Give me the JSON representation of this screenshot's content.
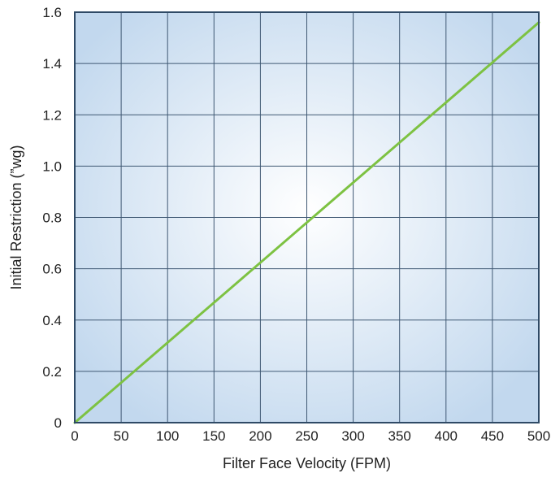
{
  "chart_data": {
    "type": "line",
    "title": "",
    "xlabel": "Filter Face Velocity (FPM)",
    "ylabel": "Initial Restriction  (”wg)",
    "xlim": [
      0,
      500
    ],
    "ylim": [
      0,
      1.6
    ],
    "x_ticks": [
      "0",
      "50",
      "100",
      "150",
      "200",
      "250",
      "300",
      "350",
      "400",
      "450",
      "500"
    ],
    "y_ticks": [
      "0",
      "0.2",
      "0.4",
      "0.6",
      "0.8",
      "1.0",
      "1.2",
      "1.4",
      "1.6"
    ],
    "grid": true,
    "legend": "none",
    "series": [
      {
        "x": [
          0,
          500
        ],
        "y": [
          0,
          1.56
        ],
        "color": "#7dc242"
      }
    ]
  },
  "colors": {
    "plot_center": "#ffffff",
    "plot_edge": "#c2d8ee",
    "grid": "#3f5873",
    "frame": "#2f4a66",
    "text": "#222222"
  }
}
